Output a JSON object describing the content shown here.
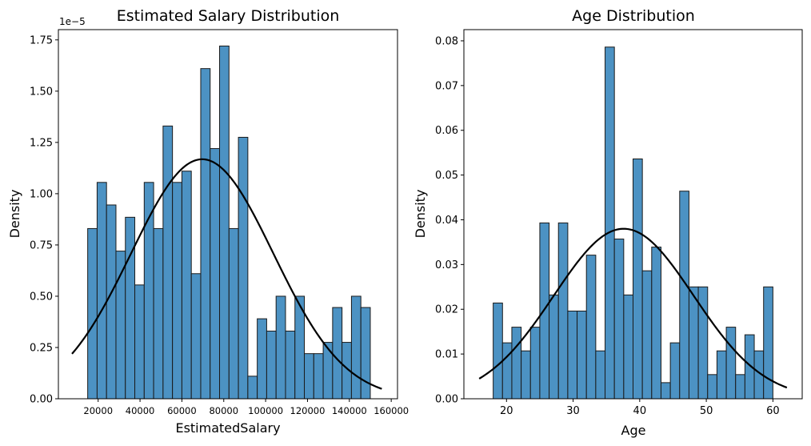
{
  "chart_data": [
    {
      "type": "bar",
      "title": "Estimated Salary Distribution",
      "xlabel": "EstimatedSalary",
      "ylabel": "Density",
      "y_offset_label": "1e−5",
      "xlim": [
        1000,
        163000
      ],
      "ylim": [
        0,
        1.8
      ],
      "xticks": [
        20000,
        40000,
        60000,
        80000,
        100000,
        120000,
        140000,
        160000
      ],
      "xtick_labels": [
        "20000",
        "40000",
        "60000",
        "80000",
        "100000",
        "120000",
        "140000",
        "160000"
      ],
      "yticks": [
        0,
        0.25,
        0.5,
        0.75,
        1.0,
        1.25,
        1.5,
        1.75
      ],
      "ytick_labels": [
        "0.00",
        "0.25",
        "0.50",
        "0.75",
        "1.00",
        "1.25",
        "1.50",
        "1.75"
      ],
      "bin_start": 15000,
      "bin_end": 150000,
      "values": [
        0.83,
        1.055,
        0.945,
        0.72,
        0.885,
        0.555,
        1.055,
        0.83,
        1.33,
        1.055,
        1.11,
        0.61,
        1.61,
        1.22,
        1.72,
        0.83,
        1.275,
        0.11,
        0.39,
        0.33,
        0.5,
        0.33,
        0.5,
        0.22,
        0.22,
        0.275,
        0.445,
        0.275,
        0.5,
        0.445
      ],
      "curve": {
        "type": "normal",
        "mean": 69700,
        "std": 34000,
        "scale": 0.9954,
        "x_from": 7500,
        "x_to": 155500
      },
      "grid": false,
      "bar_color": "#4c92c3",
      "edge_color": "#1a1a1a",
      "curve_color": "#000000"
    },
    {
      "type": "bar",
      "title": "Age Distribution",
      "xlabel": "Age",
      "ylabel": "Density",
      "xlim": [
        13.6,
        64.4
      ],
      "ylim": [
        0,
        0.0825
      ],
      "xticks": [
        20,
        30,
        40,
        50,
        60
      ],
      "xtick_labels": [
        "20",
        "30",
        "40",
        "50",
        "60"
      ],
      "yticks": [
        0,
        0.01,
        0.02,
        0.03,
        0.04,
        0.05,
        0.06,
        0.07,
        0.08
      ],
      "ytick_labels": [
        "0.00",
        "0.01",
        "0.02",
        "0.03",
        "0.04",
        "0.05",
        "0.06",
        "0.07",
        "0.08"
      ],
      "bin_start": 18,
      "bin_end": 60,
      "values": [
        0.0214,
        0.0125,
        0.016,
        0.0107,
        0.016,
        0.0393,
        0.0232,
        0.0393,
        0.0196,
        0.0196,
        0.0321,
        0.0107,
        0.0786,
        0.0357,
        0.0232,
        0.0536,
        0.0286,
        0.0339,
        0.0036,
        0.0125,
        0.0464,
        0.025,
        0.025,
        0.0054,
        0.0107,
        0.016,
        0.0054,
        0.0143,
        0.0107,
        0.025
      ],
      "curve": {
        "type": "normal",
        "mean": 37.6,
        "std": 10.5,
        "scale": 1.0,
        "x_from": 15.9,
        "x_to": 62.1
      },
      "grid": false,
      "bar_color": "#4c92c3",
      "edge_color": "#1a1a1a",
      "curve_color": "#000000"
    }
  ]
}
